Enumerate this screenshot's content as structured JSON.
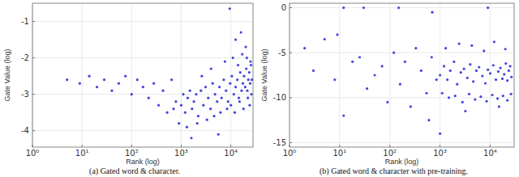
{
  "chart_data": [
    {
      "type": "scatter",
      "title": "(a) Gated word & character.",
      "x_label": "Rank (log)",
      "y_label": "Gate Value (log)",
      "log": "x",
      "grid": true,
      "color": "#2424d8",
      "marker": "circle",
      "xlim": [
        1,
        28000
      ],
      "ylim": [
        -4.45,
        -0.5
      ],
      "xticks": [
        {
          "value": 1,
          "label": "10⁰"
        },
        {
          "value": 10,
          "label": "10¹"
        },
        {
          "value": 100,
          "label": "10²"
        },
        {
          "value": 1000,
          "label": "10³"
        },
        {
          "value": 10000,
          "label": "10⁴"
        }
      ],
      "yticks": [
        -1,
        -2,
        -3,
        -4
      ],
      "x": [
        5,
        9,
        14,
        20,
        28,
        40,
        55,
        75,
        100,
        130,
        170,
        220,
        280,
        350,
        430,
        520,
        640,
        780,
        900,
        1000,
        1100,
        1200,
        1350,
        1500,
        1650,
        1800,
        2000,
        2200,
        2500,
        2800,
        3100,
        3500,
        3900,
        4300,
        4800,
        5300,
        5900,
        6500,
        7200,
        8000,
        8800,
        9700,
        10500,
        11500,
        12500,
        13500,
        14500,
        15500,
        16500,
        17500,
        18500,
        19500,
        20500,
        21500,
        22500,
        23500,
        24500,
        25500,
        26500,
        1300,
        2100,
        3300,
        4600,
        6200,
        8400,
        10000,
        12000,
        15000,
        18000,
        22000,
        24000,
        26000,
        9500,
        12500,
        16000,
        20000,
        700,
        1600,
        2600,
        4000,
        5600,
        7600,
        11000,
        14000,
        17000,
        21000,
        25000
      ],
      "values": [
        -2.6,
        -2.7,
        -2.5,
        -2.8,
        -2.6,
        -2.9,
        -2.7,
        -2.5,
        -3.0,
        -2.6,
        -2.8,
        -3.1,
        -2.7,
        -3.3,
        -2.9,
        -3.5,
        -2.6,
        -3.2,
        -3.8,
        -3.3,
        -3.0,
        -3.5,
        -3.1,
        -2.9,
        -3.4,
        -3.2,
        -3.0,
        -3.6,
        -2.9,
        -3.3,
        -2.8,
        -3.1,
        -3.4,
        -2.7,
        -3.0,
        -3.2,
        -2.8,
        -3.1,
        -2.6,
        -2.9,
        -3.2,
        -2.7,
        -2.5,
        -3.0,
        -2.8,
        -2.6,
        -3.1,
        -2.4,
        -2.9,
        -2.7,
        -2.5,
        -2.8,
        -2.3,
        -2.9,
        -2.6,
        -2.4,
        -2.7,
        -2.2,
        -2.6,
        -3.9,
        -3.8,
        -3.7,
        -3.6,
        -3.5,
        -3.4,
        -3.3,
        -3.5,
        -3.2,
        -3.4,
        -3.1,
        -3.3,
        -3.0,
        -0.65,
        -1.5,
        -1.3,
        -1.7,
        -3.4,
        -4.2,
        -2.5,
        -2.3,
        -4.1,
        -2.1,
        -2.0,
        -2.2,
        -1.9,
        -2.0,
        -2.1
      ]
    },
    {
      "type": "scatter",
      "title": "(b) Gated word & character with pre-training.",
      "x_label": "Rank (log)",
      "y_label": "Gate Value (log)",
      "log": "x",
      "grid": true,
      "color": "#2424d8",
      "marker": "circle",
      "xlim": [
        1,
        30000
      ],
      "ylim": [
        -15.5,
        0.5
      ],
      "xticks": [
        {
          "value": 1,
          "label": "10⁰"
        },
        {
          "value": 10,
          "label": "10¹"
        },
        {
          "value": 100,
          "label": "10²"
        },
        {
          "value": 1000,
          "label": "10³"
        },
        {
          "value": 10000,
          "label": "10⁴"
        }
      ],
      "yticks": [
        0,
        -5,
        -10,
        -15
      ],
      "x": [
        2,
        3,
        5,
        8,
        12,
        18,
        25,
        35,
        50,
        70,
        90,
        120,
        160,
        200,
        260,
        330,
        420,
        540,
        680,
        850,
        1000,
        1200,
        1400,
        1600,
        1900,
        2200,
        2600,
        3000,
        3500,
        4000,
        4600,
        5300,
        6000,
        7000,
        8000,
        9000,
        10000,
        11500,
        13000,
        14500,
        16000,
        17500,
        19000,
        20500,
        22000,
        23500,
        25000,
        26500,
        1100,
        1500,
        2000,
        2800,
        3800,
        5000,
        6500,
        8500,
        11000,
        14000,
        18000,
        22000,
        26000,
        1300,
        2400,
        4300,
        7500,
        12000,
        20000,
        12,
        30,
        150,
        700,
        9000,
        9,
        600,
        1000,
        3200,
        15000
      ],
      "values": [
        -4.5,
        -7.0,
        -3.5,
        -8.0,
        -12.0,
        -6.0,
        -5.5,
        -9.0,
        -7.5,
        -6.5,
        -10.5,
        -5.0,
        -8.5,
        -6.0,
        -11.0,
        -4.5,
        -7.0,
        -9.5,
        -5.5,
        -8.0,
        -7.5,
        -6.5,
        -8.0,
        -7.0,
        -6.0,
        -8.5,
        -7.2,
        -6.8,
        -7.8,
        -6.3,
        -8.2,
        -7.0,
        -6.6,
        -7.6,
        -8.4,
        -6.9,
        -7.3,
        -6.4,
        -8.0,
        -7.1,
        -6.7,
        -7.9,
        -7.4,
        -6.2,
        -8.1,
        -7.0,
        -6.5,
        -7.7,
        -9.5,
        -10.0,
        -9.8,
        -10.5,
        -9.6,
        -10.2,
        -9.9,
        -10.4,
        -9.7,
        -10.1,
        -9.8,
        -10.3,
        -9.6,
        -4.5,
        -4.0,
        -4.2,
        -4.8,
        -3.8,
        -4.6,
        0,
        0,
        0,
        -0.5,
        0,
        -3.0,
        -12.5,
        -14.0,
        -11.5,
        -11.0
      ]
    }
  ]
}
